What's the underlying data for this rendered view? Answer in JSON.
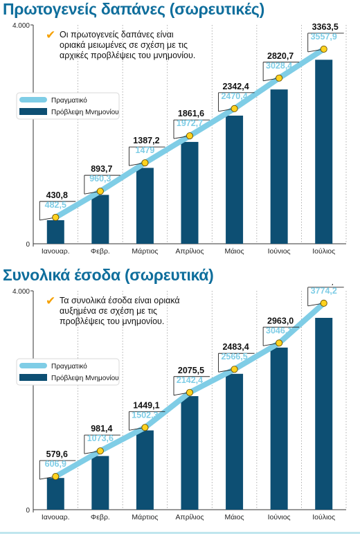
{
  "chart_data": [
    {
      "type": "bar",
      "title": "Πρωτογενείς δαπάνες (σωρευτικές)",
      "categories": [
        "Ιανουαρ.",
        "Φεβρ.",
        "Μάρτιος",
        "Απρίλιος",
        "Μάιος",
        "Ιούνιος",
        "Ιούλιος"
      ],
      "ytick_labels": [
        "4.000",
        "0"
      ],
      "ylim": [
        0,
        4000
      ],
      "grid": "vertical dotted",
      "note": "Οι πρωτογενείς δαπάνες είναι οριακά μειωμένες σε σχέση με τις αρχικές προβλέψεις του μνημονίου.",
      "legend_position": "upper-left",
      "series": [
        {
          "name": "Πραγματικό",
          "kind": "line",
          "color": "#7fcde6",
          "values": [
            482.5,
            960.3,
            1479,
            1972.7,
            2470.4,
            3028.4,
            3557.9
          ],
          "labels": [
            "482,5",
            "960,3",
            "1479",
            "1972,7",
            "2470,4",
            "3028,4",
            "3557,9"
          ]
        },
        {
          "name": "Πρόβλεψη Μνημονίου",
          "kind": "bar",
          "color": "#0d4f73",
          "values": [
            430.8,
            893.7,
            1387.2,
            1861.6,
            2342.4,
            2820.7,
            3363.5
          ],
          "labels": [
            "430,8",
            "893,7",
            "1387,2",
            "1861,6",
            "2342,4",
            "2820,7",
            "3363,5"
          ]
        }
      ]
    },
    {
      "type": "bar",
      "title": "Συνολικά έσοδα (σωρευτικά)",
      "categories": [
        "Ιανουαρ.",
        "Φεβρ.",
        "Μάρτιος",
        "Απρίλιος",
        "Μάιος",
        "Ιούνιος",
        "Ιούλιος"
      ],
      "ytick_labels": [
        "4.000",
        "0"
      ],
      "ylim": [
        0,
        4000
      ],
      "grid": "vertical dotted",
      "note": "Τα συνολικά έσοδα είναι οριακά αυξημένα σε σχέση με τις προβλέψεις του μνημονίου.",
      "legend_position": "upper-left",
      "series": [
        {
          "name": "Πραγματικό",
          "kind": "line",
          "color": "#7fcde6",
          "values": [
            606.9,
            1073.6,
            1502.3,
            2142.4,
            2566.5,
            3046.1,
            3774.2
          ],
          "labels": [
            "606,9",
            "1073,6",
            "1502,3",
            "2142,4",
            "2566,5",
            "3046,1",
            "3774,2"
          ]
        },
        {
          "name": "Πρόβλεψη Μνημονίου",
          "kind": "bar",
          "color": "#0d4f73",
          "values": [
            579.6,
            981.4,
            1449.1,
            2075.5,
            2483.4,
            2963.0,
            3506.4
          ],
          "labels": [
            "579,6",
            "981,4",
            "1449,1",
            "2075,5",
            "2483,4",
            "2963,0",
            "3506,4"
          ]
        }
      ]
    }
  ],
  "colors": {
    "title": "#0f6e9c",
    "bar": "#0d4f73",
    "line": "#7fcde6",
    "marker": "#ffd21f",
    "check": "#f5a000"
  }
}
